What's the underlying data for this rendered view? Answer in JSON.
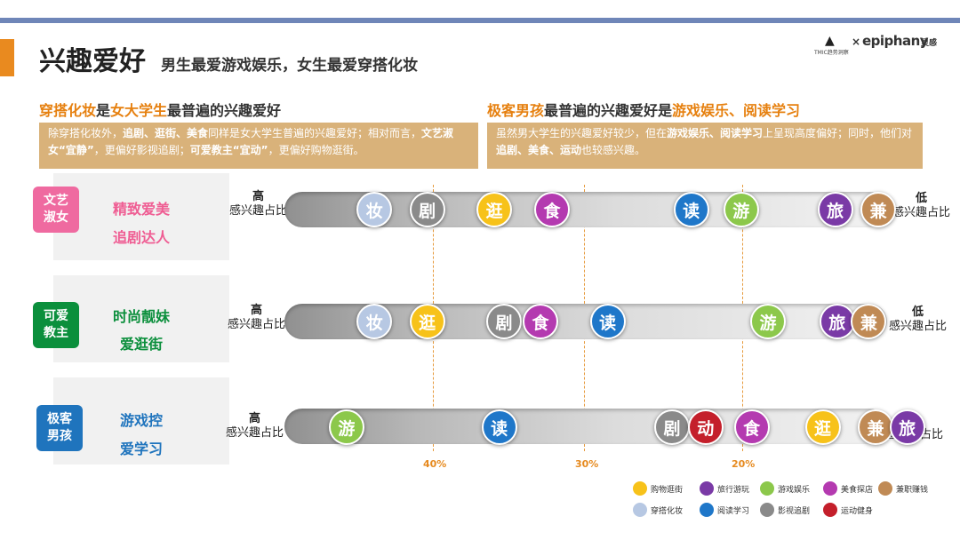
{
  "header": {
    "title": "兴趣爱好",
    "subtitle": "男生最爱游戏娱乐，女生最爱穿搭化妆",
    "logo": {
      "mark": "▲",
      "sub": "TMIC趋势洞察",
      "x": "×",
      "word": "epiphany",
      "cn": "灵感"
    }
  },
  "left_section": {
    "head_parts": [
      "穿搭化妆",
      "是",
      "女大学生",
      "最普遍的兴趣爱好"
    ],
    "box_parts": [
      "除穿搭化妆外，",
      "追剧、逛街、美食",
      "同样是女大学生普遍的兴趣爱好；相对而言，",
      "文艺淑女“宜静”",
      "，更偏好影视追剧；",
      "可爱教主“宜动”",
      "，更偏好购物逛街。"
    ]
  },
  "right_section": {
    "head_parts": [
      "极客男孩",
      "最普遍的兴趣爱好是",
      "游戏娱乐、阅读学习"
    ],
    "box_parts": [
      "虽然男大学生的兴趣爱好较少，但在",
      "游戏娱乐、阅读学习",
      "上呈现高度偏好；同时，他们对",
      "追剧、美食、运动",
      "也较感兴趣。"
    ]
  },
  "track_labels": {
    "high": "高",
    "low": "低",
    "caption": "感兴趣占比"
  },
  "percent_axis": [
    "40%",
    "30%",
    "20%"
  ],
  "personas": [
    {
      "badge": [
        "文艺",
        "淑女"
      ],
      "badge_color": "#ef6aa0",
      "tags": [
        "精致爱美",
        "追剧达人"
      ],
      "tag_color": "#ef5d93",
      "bubbles": [
        {
          "char": "妆",
          "category": "makeup",
          "pos": 0.39
        },
        {
          "char": "剧",
          "category": "drama",
          "pos": 0.445
        },
        {
          "char": "逛",
          "category": "shopping",
          "pos": 0.515
        },
        {
          "char": "食",
          "category": "food",
          "pos": 0.575
        },
        {
          "char": "读",
          "category": "reading",
          "pos": 0.72
        },
        {
          "char": "游",
          "category": "gaming",
          "pos": 0.772
        },
        {
          "char": "旅",
          "category": "travel",
          "pos": 0.87
        },
        {
          "char": "兼",
          "category": "parttime",
          "pos": 0.915
        }
      ]
    },
    {
      "badge": [
        "可爱",
        "教主"
      ],
      "badge_color": "#0b8f3c",
      "tags": [
        "时尚靓妹",
        "爱逛街"
      ],
      "tag_color": "#0b8f3c",
      "bubbles": [
        {
          "char": "妆",
          "category": "makeup",
          "pos": 0.39
        },
        {
          "char": "逛",
          "category": "shopping",
          "pos": 0.445
        },
        {
          "char": "剧",
          "category": "drama",
          "pos": 0.525
        },
        {
          "char": "食",
          "category": "food",
          "pos": 0.563
        },
        {
          "char": "读",
          "category": "reading",
          "pos": 0.633
        },
        {
          "char": "游",
          "category": "gaming",
          "pos": 0.8
        },
        {
          "char": "旅",
          "category": "travel",
          "pos": 0.872
        },
        {
          "char": "兼",
          "category": "parttime",
          "pos": 0.905
        }
      ]
    },
    {
      "badge": [
        "极客",
        "男孩"
      ],
      "badge_color": "#1f74bd",
      "tags": [
        "游戏控",
        "爱学习"
      ],
      "tag_color": "#1f74bd",
      "bubbles": [
        {
          "char": "游",
          "category": "gaming",
          "pos": 0.361
        },
        {
          "char": "读",
          "category": "reading",
          "pos": 0.52
        },
        {
          "char": "剧",
          "category": "drama",
          "pos": 0.7
        },
        {
          "char": "动",
          "category": "sports",
          "pos": 0.735
        },
        {
          "char": "食",
          "category": "food",
          "pos": 0.783
        },
        {
          "char": "逛",
          "category": "shopping",
          "pos": 0.857
        },
        {
          "char": "兼",
          "category": "parttime",
          "pos": 0.912
        },
        {
          "char": "旅",
          "category": "travel",
          "pos": 0.945
        }
      ]
    }
  ],
  "legend": [
    {
      "key": "shopping",
      "label": "购物逛街",
      "color": "#f7c21a"
    },
    {
      "key": "travel",
      "label": "旅行游玩",
      "color": "#7a3aa6"
    },
    {
      "key": "gaming",
      "label": "游戏娱乐",
      "color": "#8cc84b"
    },
    {
      "key": "food",
      "label": "美食探店",
      "color": "#b43ab0"
    },
    {
      "key": "parttime",
      "label": "兼职赚钱",
      "color": "#c08a55"
    },
    {
      "key": "makeup",
      "label": "穿搭化妆",
      "color": "#b7c8e3"
    },
    {
      "key": "reading",
      "label": "阅读学习",
      "color": "#1f77c9"
    },
    {
      "key": "drama",
      "label": "影视追剧",
      "color": "#8a8a8a"
    },
    {
      "key": "sports",
      "label": "运动健身",
      "color": "#c41f2b"
    }
  ]
}
